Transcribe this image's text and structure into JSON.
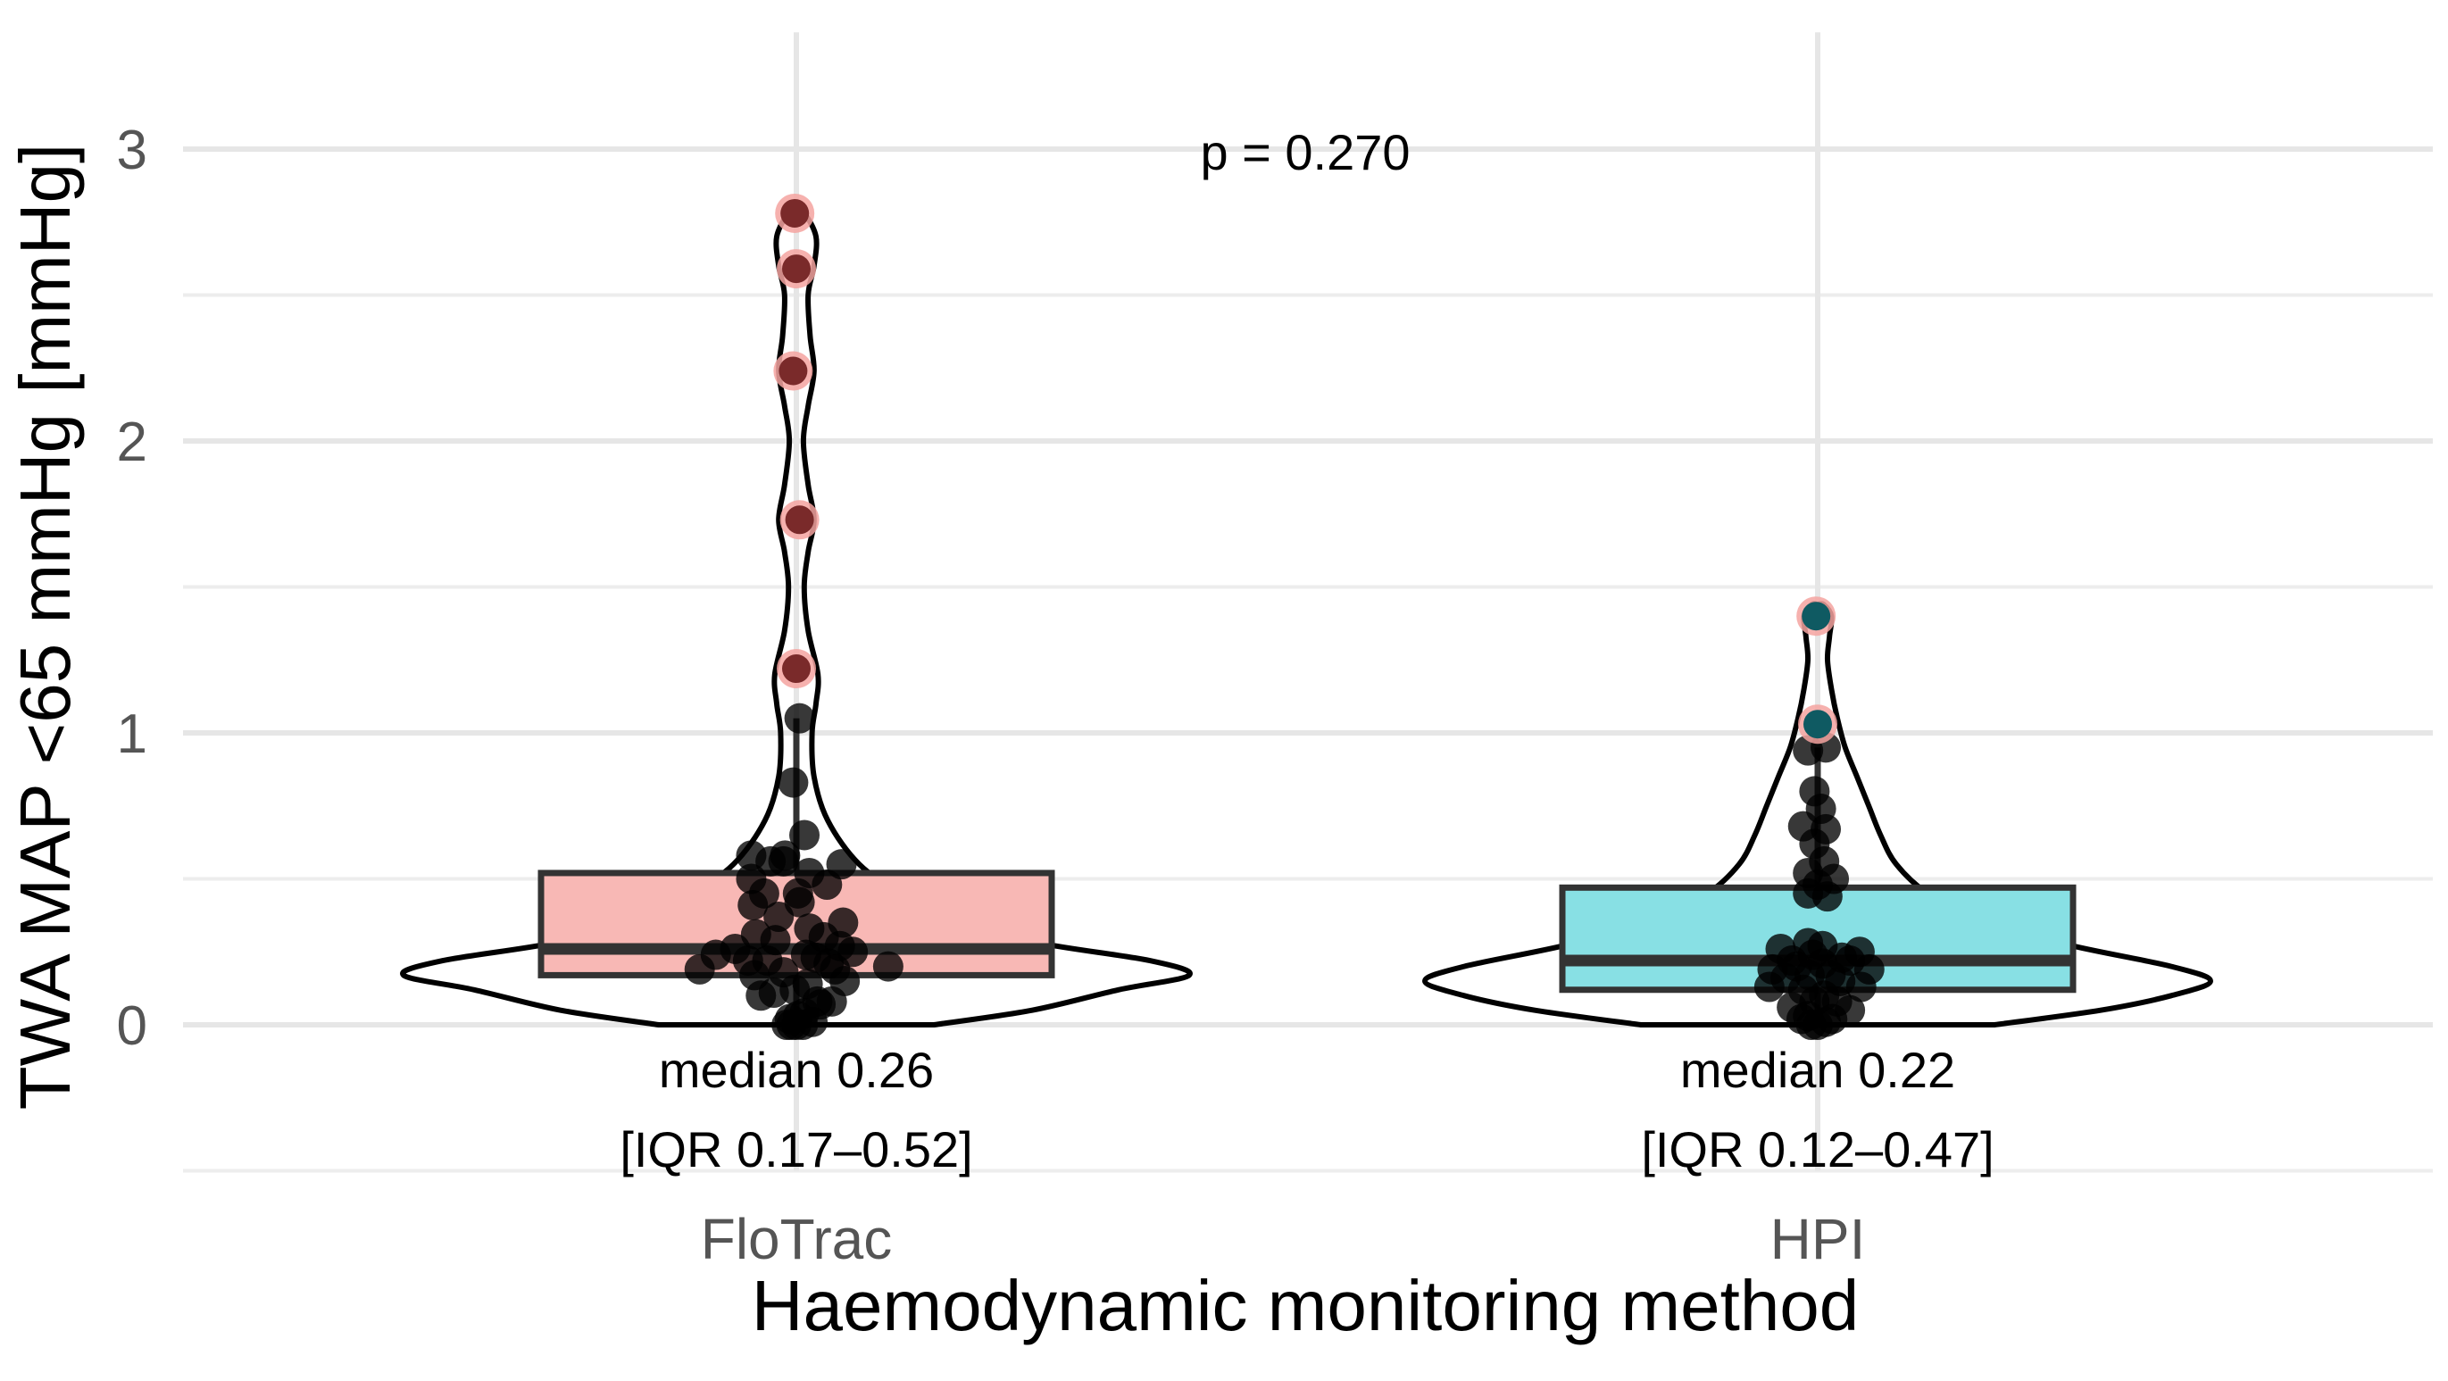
{
  "chart_data": {
    "type": "violin-box",
    "title": "",
    "xlabel": "Haemodynamic monitoring method",
    "ylabel": "TWA MAP <65 mmHg [mmHg]",
    "ylim": [
      -0.5,
      3.4
    ],
    "yticks": [
      0,
      1,
      2,
      3
    ],
    "ytick_labels": [
      "0",
      "1",
      "2",
      "3"
    ],
    "categories": [
      "FloTrac",
      "HPI"
    ],
    "grid": true,
    "p_value_label": "p = 0.270",
    "groups": [
      {
        "name": "FloTrac",
        "fill_color": "#f8b8b5",
        "median": 0.26,
        "q1": 0.17,
        "q3": 0.52,
        "whisker_low": 0.0,
        "whisker_high": 1.05,
        "median_label": "median 0.26",
        "iqr_label": "[IQR 0.17–0.52]",
        "violin_width": [
          [
            0.0,
            0.35
          ],
          [
            0.05,
            0.6
          ],
          [
            0.12,
            0.82
          ],
          [
            0.17,
            1.0
          ],
          [
            0.22,
            0.9
          ],
          [
            0.28,
            0.62
          ],
          [
            0.35,
            0.43
          ],
          [
            0.45,
            0.27
          ],
          [
            0.55,
            0.16
          ],
          [
            0.7,
            0.08
          ],
          [
            0.85,
            0.045
          ],
          [
            1.0,
            0.04
          ],
          [
            1.1,
            0.05
          ],
          [
            1.2,
            0.055
          ],
          [
            1.35,
            0.03
          ],
          [
            1.5,
            0.02
          ],
          [
            1.62,
            0.03
          ],
          [
            1.73,
            0.045
          ],
          [
            1.85,
            0.03
          ],
          [
            2.0,
            0.018
          ],
          [
            2.12,
            0.03
          ],
          [
            2.24,
            0.045
          ],
          [
            2.36,
            0.035
          ],
          [
            2.5,
            0.03
          ],
          [
            2.6,
            0.045
          ],
          [
            2.7,
            0.05
          ],
          [
            2.78,
            0.02
          ]
        ],
        "points": [
          {
            "y": 0.0,
            "dx": -0.06
          },
          {
            "y": 0.0,
            "dx": -0.03
          },
          {
            "y": 0.0,
            "dx": 0.0
          },
          {
            "y": 0.0,
            "dx": 0.04
          },
          {
            "y": 0.01,
            "dx": 0.1
          },
          {
            "y": 0.02,
            "dx": -0.04
          },
          {
            "y": 0.03,
            "dx": 0.01
          },
          {
            "y": 0.04,
            "dx": 0.05
          },
          {
            "y": 0.07,
            "dx": 0.15
          },
          {
            "y": 0.08,
            "dx": 0.22
          },
          {
            "y": 0.08,
            "dx": 0.13
          },
          {
            "y": 0.1,
            "dx": -0.22
          },
          {
            "y": 0.11,
            "dx": -0.14
          },
          {
            "y": 0.12,
            "dx": -0.01
          },
          {
            "y": 0.14,
            "dx": 0.07
          },
          {
            "y": 0.15,
            "dx": 0.3
          },
          {
            "y": 0.17,
            "dx": -0.26
          },
          {
            "y": 0.18,
            "dx": -0.08
          },
          {
            "y": 0.19,
            "dx": 0.24
          },
          {
            "y": 0.19,
            "dx": -0.6
          },
          {
            "y": 0.2,
            "dx": 0.57
          },
          {
            "y": 0.21,
            "dx": 0.2
          },
          {
            "y": 0.22,
            "dx": -0.3
          },
          {
            "y": 0.22,
            "dx": -0.18
          },
          {
            "y": 0.23,
            "dx": 0.12
          },
          {
            "y": 0.24,
            "dx": -0.5
          },
          {
            "y": 0.24,
            "dx": 0.06
          },
          {
            "y": 0.25,
            "dx": 0.35
          },
          {
            "y": 0.26,
            "dx": -0.38
          },
          {
            "y": 0.27,
            "dx": 0.27
          },
          {
            "y": 0.29,
            "dx": -0.13
          },
          {
            "y": 0.3,
            "dx": 0.17
          },
          {
            "y": 0.31,
            "dx": -0.25
          },
          {
            "y": 0.33,
            "dx": 0.08
          },
          {
            "y": 0.35,
            "dx": 0.29
          },
          {
            "y": 0.37,
            "dx": -0.11
          },
          {
            "y": 0.41,
            "dx": -0.27
          },
          {
            "y": 0.42,
            "dx": 0.02
          },
          {
            "y": 0.45,
            "dx": -0.2
          },
          {
            "y": 0.45,
            "dx": 0.01
          },
          {
            "y": 0.48,
            "dx": 0.19
          },
          {
            "y": 0.5,
            "dx": -0.28
          },
          {
            "y": 0.52,
            "dx": 0.08
          },
          {
            "y": 0.55,
            "dx": 0.28
          },
          {
            "y": 0.56,
            "dx": -0.08
          },
          {
            "y": 0.56,
            "dx": -0.16
          },
          {
            "y": 0.58,
            "dx": -0.28
          },
          {
            "y": 0.58,
            "dx": -0.07
          },
          {
            "y": 0.65,
            "dx": 0.05
          },
          {
            "y": 0.83,
            "dx": -0.02
          },
          {
            "y": 1.05,
            "dx": 0.02
          },
          {
            "y": 1.22,
            "dx": 0.0,
            "outlier": true
          },
          {
            "y": 1.73,
            "dx": 0.02,
            "outlier": true
          },
          {
            "y": 2.24,
            "dx": -0.02,
            "outlier": true
          },
          {
            "y": 2.59,
            "dx": 0.0,
            "outlier": true
          },
          {
            "y": 2.78,
            "dx": -0.01,
            "outlier": true
          }
        ]
      },
      {
        "name": "HPI",
        "fill_color": "#88e0e4",
        "median": 0.22,
        "q1": 0.12,
        "q3": 0.47,
        "whisker_low": 0.0,
        "whisker_high": 0.95,
        "median_label": "median 0.22",
        "iqr_label": "[IQR 0.12–0.47]",
        "violin_width": [
          [
            0.0,
            0.45
          ],
          [
            0.05,
            0.72
          ],
          [
            0.1,
            0.9
          ],
          [
            0.15,
            1.0
          ],
          [
            0.2,
            0.9
          ],
          [
            0.27,
            0.65
          ],
          [
            0.35,
            0.42
          ],
          [
            0.45,
            0.28
          ],
          [
            0.55,
            0.2
          ],
          [
            0.65,
            0.16
          ],
          [
            0.75,
            0.13
          ],
          [
            0.85,
            0.1
          ],
          [
            0.95,
            0.07
          ],
          [
            1.05,
            0.05
          ],
          [
            1.15,
            0.035
          ],
          [
            1.25,
            0.025
          ],
          [
            1.33,
            0.03
          ],
          [
            1.4,
            0.035
          ],
          [
            1.44,
            0.015
          ]
        ],
        "points": [
          {
            "y": 0.0,
            "dx": -0.04
          },
          {
            "y": 0.0,
            "dx": 0.0
          },
          {
            "y": 0.01,
            "dx": 0.05
          },
          {
            "y": 0.02,
            "dx": -0.1
          },
          {
            "y": 0.02,
            "dx": 0.09
          },
          {
            "y": 0.03,
            "dx": -0.06
          },
          {
            "y": 0.05,
            "dx": 0.2
          },
          {
            "y": 0.06,
            "dx": -0.16
          },
          {
            "y": 0.08,
            "dx": 0.12
          },
          {
            "y": 0.08,
            "dx": -0.02
          },
          {
            "y": 0.1,
            "dx": 0.04
          },
          {
            "y": 0.12,
            "dx": -0.09
          },
          {
            "y": 0.13,
            "dx": 0.27
          },
          {
            "y": 0.13,
            "dx": -0.3
          },
          {
            "y": 0.15,
            "dx": 0.14
          },
          {
            "y": 0.16,
            "dx": -0.2
          },
          {
            "y": 0.17,
            "dx": -0.05
          },
          {
            "y": 0.17,
            "dx": 0.08
          },
          {
            "y": 0.19,
            "dx": 0.32
          },
          {
            "y": 0.19,
            "dx": -0.28
          },
          {
            "y": 0.2,
            "dx": -0.13
          },
          {
            "y": 0.21,
            "dx": 0.03
          },
          {
            "y": 0.22,
            "dx": 0.2
          },
          {
            "y": 0.22,
            "dx": -0.16
          },
          {
            "y": 0.23,
            "dx": 0.15
          },
          {
            "y": 0.24,
            "dx": -0.03
          },
          {
            "y": 0.25,
            "dx": 0.26
          },
          {
            "y": 0.26,
            "dx": -0.23
          },
          {
            "y": 0.27,
            "dx": 0.03
          },
          {
            "y": 0.28,
            "dx": -0.06
          },
          {
            "y": 0.44,
            "dx": 0.06
          },
          {
            "y": 0.45,
            "dx": -0.06
          },
          {
            "y": 0.48,
            "dx": 0.0
          },
          {
            "y": 0.5,
            "dx": 0.1
          },
          {
            "y": 0.52,
            "dx": -0.06
          },
          {
            "y": 0.56,
            "dx": 0.04
          },
          {
            "y": 0.62,
            "dx": -0.02
          },
          {
            "y": 0.67,
            "dx": 0.05
          },
          {
            "y": 0.68,
            "dx": -0.09
          },
          {
            "y": 0.74,
            "dx": 0.02
          },
          {
            "y": 0.8,
            "dx": -0.02
          },
          {
            "y": 0.94,
            "dx": -0.06
          },
          {
            "y": 0.95,
            "dx": 0.05
          },
          {
            "y": 1.03,
            "dx": 0.0,
            "outlier": true
          },
          {
            "y": 1.4,
            "dx": -0.01,
            "outlier": true
          }
        ]
      }
    ]
  }
}
